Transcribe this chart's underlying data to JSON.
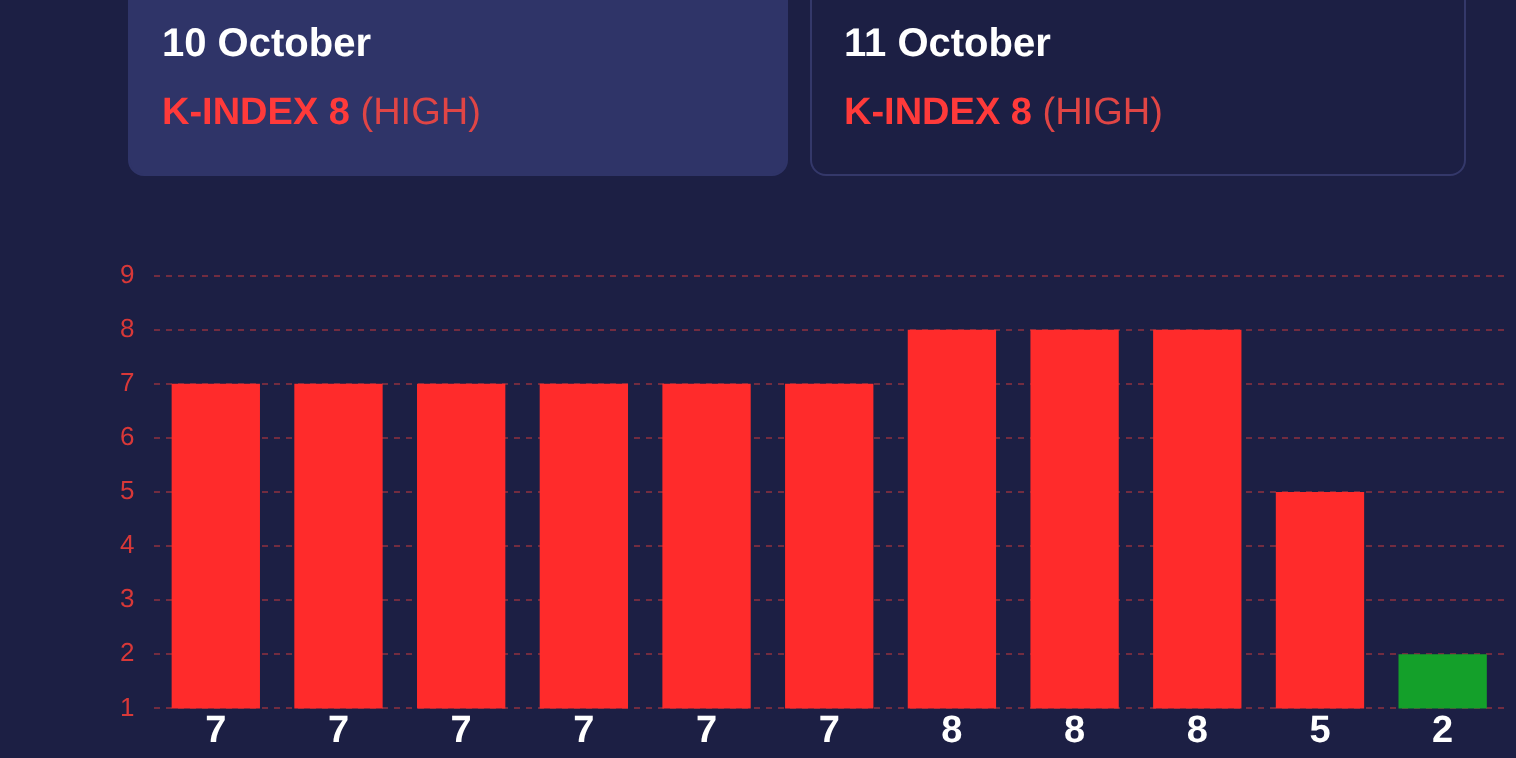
{
  "chart_data": [
    {
      "type": "other",
      "title": "10 October",
      "annotations": [
        "K-INDEX 8",
        "(HIGH)"
      ]
    },
    {
      "type": "other",
      "title": "11 October",
      "annotations": [
        "K-INDEX 8",
        "(HIGH)"
      ]
    },
    {
      "type": "bar",
      "categories": [
        null,
        null,
        null,
        null,
        null,
        null,
        null,
        null,
        null,
        null,
        null
      ],
      "values": [
        7,
        7,
        7,
        7,
        7,
        7,
        8,
        8,
        8,
        5,
        2
      ],
      "colors": [
        "#ff2b2b",
        "#ff2b2b",
        "#ff2b2b",
        "#ff2b2b",
        "#ff2b2b",
        "#ff2b2b",
        "#ff2b2b",
        "#ff2b2b",
        "#ff2b2b",
        "#ff2b2b",
        "#14a02a"
      ],
      "ylim": [
        1,
        9
      ],
      "yticks": [
        1,
        2,
        3,
        4,
        5,
        6,
        7,
        8,
        9
      ],
      "grid": "y",
      "legend": false,
      "data_labels": true,
      "tick_labels": "y"
    }
  ]
}
